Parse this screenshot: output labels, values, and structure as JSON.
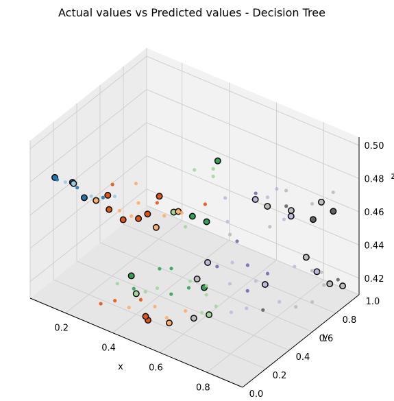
{
  "chart_data": {
    "type": "scatter",
    "projection": "3d",
    "title": "Actual values vs Predicted values - Decision Tree",
    "xlabel": "x",
    "ylabel": "y",
    "zlabel": "z",
    "xlim": [
      0.05,
      0.95
    ],
    "ylim": [
      0.0,
      1.0
    ],
    "zlim": [
      0.41,
      0.505
    ],
    "xticks": [
      0.2,
      0.4,
      0.6,
      0.8
    ],
    "xtick_labels": [
      "0.2",
      "0.4",
      "0.6",
      "0.8"
    ],
    "yticks": [
      0.0,
      0.2,
      0.4,
      0.6,
      0.8,
      1.0
    ],
    "ytick_labels": [
      "0.0",
      "0.2",
      "0.4",
      "0.6",
      "0.8",
      "1.0"
    ],
    "zticks": [
      0.42,
      0.44,
      0.46,
      0.48,
      0.5
    ],
    "ztick_labels": [
      "0.42",
      "0.44",
      "0.46",
      "0.48",
      "0.50"
    ],
    "grid": true,
    "colormap": [
      "#1f77b4",
      "#9ecae1",
      "#e6550d",
      "#fdae6b",
      "#31a354",
      "#a1d99b",
      "#756bb1",
      "#bcbddc",
      "#636363",
      "#bdbdbd"
    ],
    "series": [
      {
        "marker": "large-dark-outlined",
        "points": [
          [
            0.12,
            0.07,
            0.483,
            0
          ],
          [
            0.18,
            0.1,
            0.482,
            0
          ],
          [
            0.17,
            0.13,
            0.479,
            1
          ],
          [
            0.22,
            0.12,
            0.474,
            0
          ],
          [
            0.28,
            0.1,
            0.477,
            3
          ],
          [
            0.33,
            0.11,
            0.474,
            2
          ],
          [
            0.3,
            0.16,
            0.478,
            2
          ],
          [
            0.37,
            0.15,
            0.468,
            2
          ],
          [
            0.42,
            0.18,
            0.47,
            2
          ],
          [
            0.5,
            0.17,
            0.47,
            3
          ],
          [
            0.36,
            0.38,
            0.458,
            2
          ],
          [
            0.4,
            0.4,
            0.47,
            2
          ],
          [
            0.53,
            0.26,
            0.476,
            5
          ],
          [
            0.55,
            0.38,
            0.468,
            4
          ],
          [
            0.5,
            0.36,
            0.469,
            3
          ],
          [
            0.62,
            0.36,
            0.47,
            4
          ],
          [
            0.45,
            0.8,
            0.472,
            4
          ],
          [
            0.55,
            0.92,
            0.448,
            7
          ],
          [
            0.7,
            0.72,
            0.464,
            9
          ],
          [
            0.8,
            0.72,
            0.464,
            7
          ],
          [
            0.85,
            0.62,
            0.476,
            9
          ],
          [
            0.9,
            0.88,
            0.464,
            8
          ],
          [
            0.78,
            0.95,
            0.448,
            8
          ],
          [
            0.8,
            0.98,
            0.458,
            9
          ],
          [
            0.45,
            0.1,
            0.431,
            5
          ],
          [
            0.38,
            0.2,
            0.432,
            4
          ],
          [
            0.6,
            0.38,
            0.428,
            4
          ],
          [
            0.55,
            0.42,
            0.428,
            9
          ],
          [
            0.58,
            0.45,
            0.438,
            7
          ],
          [
            0.5,
            0.1,
            0.418,
            2
          ],
          [
            0.48,
            0.12,
            0.418,
            2
          ],
          [
            0.58,
            0.12,
            0.42,
            3
          ],
          [
            0.62,
            0.25,
            0.418,
            9
          ],
          [
            0.65,
            0.32,
            0.418,
            5
          ],
          [
            0.7,
            0.7,
            0.418,
            7
          ],
          [
            0.8,
            0.85,
            0.432,
            9
          ],
          [
            0.9,
            0.85,
            0.422,
            9
          ],
          [
            0.92,
            0.92,
            0.418,
            9
          ],
          [
            0.88,
            0.78,
            0.432,
            7
          ]
        ]
      },
      {
        "marker": "small",
        "points": [
          [
            0.14,
            0.05,
            0.484,
            0
          ],
          [
            0.16,
            0.08,
            0.482,
            1
          ],
          [
            0.2,
            0.1,
            0.48,
            0
          ],
          [
            0.24,
            0.14,
            0.475,
            1
          ],
          [
            0.26,
            0.2,
            0.472,
            0
          ],
          [
            0.3,
            0.22,
            0.474,
            1
          ],
          [
            0.34,
            0.18,
            0.47,
            3
          ],
          [
            0.38,
            0.2,
            0.468,
            3
          ],
          [
            0.31,
            0.18,
            0.484,
            2
          ],
          [
            0.4,
            0.22,
            0.476,
            3
          ],
          [
            0.36,
            0.28,
            0.482,
            3
          ],
          [
            0.44,
            0.3,
            0.474,
            2
          ],
          [
            0.47,
            0.3,
            0.468,
            3
          ],
          [
            0.55,
            0.32,
            0.465,
            5
          ],
          [
            0.52,
            0.35,
            0.47,
            3
          ],
          [
            0.52,
            0.55,
            0.464,
            2
          ],
          [
            0.44,
            0.62,
            0.476,
            5
          ],
          [
            0.5,
            0.66,
            0.478,
            5
          ],
          [
            0.48,
            0.7,
            0.47,
            5
          ],
          [
            0.6,
            0.56,
            0.472,
            7
          ],
          [
            0.68,
            0.66,
            0.474,
            6
          ],
          [
            0.7,
            0.8,
            0.47,
            7
          ],
          [
            0.74,
            0.8,
            0.462,
            8
          ],
          [
            0.72,
            0.84,
            0.468,
            9
          ],
          [
            0.75,
            0.62,
            0.478,
            7
          ],
          [
            0.78,
            0.7,
            0.462,
            7
          ],
          [
            0.85,
            0.8,
            0.47,
            9
          ],
          [
            0.88,
            0.92,
            0.472,
            9
          ],
          [
            0.62,
            0.54,
            0.46,
            7
          ],
          [
            0.68,
            0.5,
            0.454,
            6
          ],
          [
            0.66,
            0.48,
            0.458,
            9
          ],
          [
            0.72,
            0.7,
            0.454,
            9
          ],
          [
            0.38,
            0.08,
            0.434,
            5
          ],
          [
            0.42,
            0.14,
            0.43,
            4
          ],
          [
            0.44,
            0.2,
            0.426,
            5
          ],
          [
            0.46,
            0.26,
            0.426,
            5
          ],
          [
            0.48,
            0.24,
            0.44,
            4
          ],
          [
            0.5,
            0.3,
            0.438,
            4
          ],
          [
            0.55,
            0.36,
            0.43,
            5
          ],
          [
            0.6,
            0.4,
            0.428,
            5
          ],
          [
            0.62,
            0.45,
            0.438,
            6
          ],
          [
            0.66,
            0.5,
            0.44,
            7
          ],
          [
            0.7,
            0.55,
            0.438,
            6
          ],
          [
            0.72,
            0.58,
            0.428,
            7
          ],
          [
            0.75,
            0.62,
            0.432,
            6
          ],
          [
            0.8,
            0.75,
            0.432,
            7
          ],
          [
            0.84,
            0.82,
            0.428,
            9
          ],
          [
            0.86,
            0.86,
            0.426,
            9
          ],
          [
            0.9,
            0.8,
            0.424,
            9
          ],
          [
            0.92,
            0.88,
            0.424,
            8
          ],
          [
            0.3,
            0.1,
            0.416,
            2
          ],
          [
            0.34,
            0.14,
            0.418,
            2
          ],
          [
            0.38,
            0.18,
            0.414,
            3
          ],
          [
            0.42,
            0.2,
            0.42,
            2
          ],
          [
            0.46,
            0.24,
            0.416,
            3
          ],
          [
            0.52,
            0.22,
            0.414,
            3
          ],
          [
            0.56,
            0.3,
            0.416,
            3
          ],
          [
            0.6,
            0.36,
            0.414,
            5
          ],
          [
            0.64,
            0.4,
            0.418,
            5
          ],
          [
            0.68,
            0.45,
            0.414,
            7
          ],
          [
            0.72,
            0.5,
            0.416,
            7
          ],
          [
            0.76,
            0.56,
            0.414,
            8
          ],
          [
            0.8,
            0.62,
            0.418,
            7
          ],
          [
            0.84,
            0.68,
            0.414,
            9
          ],
          [
            0.88,
            0.74,
            0.416,
            9
          ],
          [
            0.45,
            0.4,
            0.414,
            4
          ],
          [
            0.5,
            0.45,
            0.418,
            4
          ],
          [
            0.55,
            0.5,
            0.414,
            5
          ],
          [
            0.6,
            0.6,
            0.418,
            7
          ],
          [
            0.65,
            0.65,
            0.414,
            6
          ]
        ]
      }
    ]
  }
}
